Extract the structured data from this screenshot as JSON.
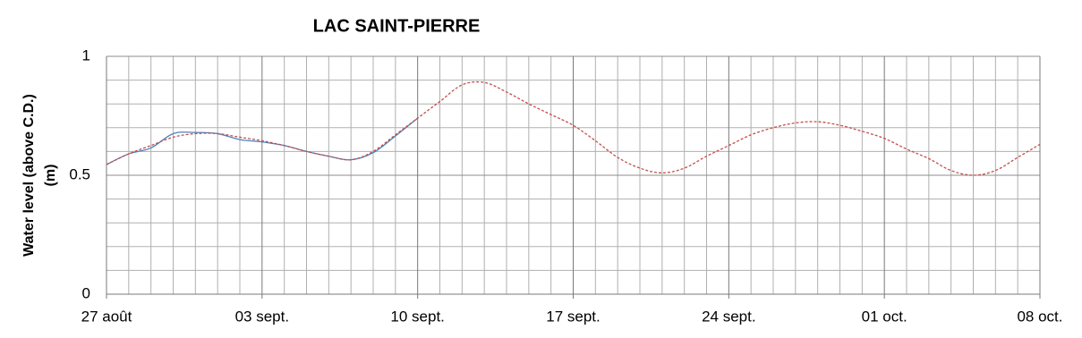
{
  "chart_data": {
    "type": "line",
    "title": "LAC SAINT-PIERRE",
    "ylabel": [
      "Water level (above C.D.)",
      "(m)"
    ],
    "xlim": [
      0,
      42
    ],
    "ylim": [
      0,
      1
    ],
    "xticks": [
      {
        "value": 0,
        "label": "27 août"
      },
      {
        "value": 7,
        "label": "03 sept."
      },
      {
        "value": 14,
        "label": "10 sept."
      },
      {
        "value": 21,
        "label": "17 sept."
      },
      {
        "value": 28,
        "label": "24 sept."
      },
      {
        "value": 35,
        "label": "01 oct."
      },
      {
        "value": 42,
        "label": "08 oct."
      }
    ],
    "xminorticks": [
      1,
      2,
      3,
      4,
      5,
      6,
      8,
      9,
      10,
      11,
      12,
      13,
      15,
      16,
      17,
      18,
      19,
      20,
      22,
      23,
      24,
      25,
      26,
      27,
      29,
      30,
      31,
      32,
      33,
      34,
      36,
      37,
      38,
      39,
      40,
      41
    ],
    "yticks": [
      0,
      0.5,
      1
    ],
    "yminorticks": [
      0.1,
      0.2,
      0.3,
      0.4,
      0.6,
      0.7,
      0.8,
      0.9
    ],
    "grid": true,
    "series": [
      {
        "color": "#4f81bd",
        "dash": false,
        "x": [
          0,
          1,
          2,
          3,
          4,
          5,
          6,
          7,
          8,
          9,
          10,
          11,
          12,
          13,
          14
        ],
        "values": [
          0.545,
          0.59,
          0.615,
          0.675,
          0.68,
          0.675,
          0.65,
          0.64,
          0.625,
          0.6,
          0.58,
          0.565,
          0.595,
          0.665,
          0.74
        ]
      },
      {
        "color": "#c0504d",
        "dash": true,
        "x": [
          0,
          1,
          2,
          3,
          4,
          5,
          6,
          7,
          8,
          9,
          10,
          11,
          12,
          13,
          14,
          15,
          16,
          17,
          18,
          19,
          20,
          21,
          22,
          23,
          24,
          25,
          26,
          27,
          28,
          29,
          30,
          31,
          32,
          33,
          34,
          35,
          36,
          37,
          38,
          39,
          40,
          41,
          42
        ],
        "values": [
          0.545,
          0.59,
          0.625,
          0.66,
          0.675,
          0.675,
          0.66,
          0.645,
          0.625,
          0.6,
          0.58,
          0.565,
          0.6,
          0.67,
          0.74,
          0.81,
          0.88,
          0.89,
          0.85,
          0.8,
          0.755,
          0.71,
          0.645,
          0.575,
          0.53,
          0.51,
          0.53,
          0.58,
          0.625,
          0.67,
          0.7,
          0.72,
          0.725,
          0.71,
          0.685,
          0.655,
          0.61,
          0.57,
          0.52,
          0.5,
          0.52,
          0.575,
          0.63
        ]
      }
    ]
  }
}
